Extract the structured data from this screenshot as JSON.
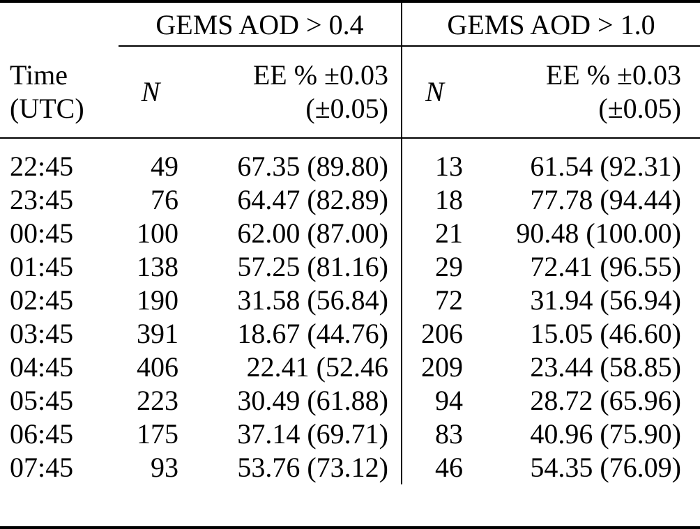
{
  "colors": {
    "text": "#000000",
    "background": "#ffffff",
    "rules": "#000000"
  },
  "chart_data": {
    "type": "table",
    "column_groups": [
      "GEMS AOD > 0.4",
      "GEMS AOD > 1.0"
    ],
    "columns": [
      "Time (UTC)",
      "N",
      "EE % ±0.03 (±0.05)",
      "N",
      "EE % ±0.03 (±0.05)"
    ],
    "header": {
      "time_line1": "Time",
      "time_line2": "(UTC)",
      "n_label": "N",
      "ee_line1": "EE % ±0.03",
      "ee_line2": "(±0.05)"
    },
    "rows": [
      {
        "time": "22:45",
        "n_aod04": "49",
        "ee_aod04": "67.35 (89.80)",
        "n_aod10": "13",
        "ee_aod10": "61.54 (92.31)"
      },
      {
        "time": "23:45",
        "n_aod04": "76",
        "ee_aod04": "64.47 (82.89)",
        "n_aod10": "18",
        "ee_aod10": "77.78 (94.44)"
      },
      {
        "time": "00:45",
        "n_aod04": "100",
        "ee_aod04": "62.00 (87.00)",
        "n_aod10": "21",
        "ee_aod10": "90.48 (100.00)"
      },
      {
        "time": "01:45",
        "n_aod04": "138",
        "ee_aod04": "57.25 (81.16)",
        "n_aod10": "29",
        "ee_aod10": "72.41 (96.55)"
      },
      {
        "time": "02:45",
        "n_aod04": "190",
        "ee_aod04": "31.58 (56.84)",
        "n_aod10": "72",
        "ee_aod10": "31.94 (56.94)"
      },
      {
        "time": "03:45",
        "n_aod04": "391",
        "ee_aod04": "18.67 (44.76)",
        "n_aod10": "206",
        "ee_aod10": "15.05 (46.60)"
      },
      {
        "time": "04:45",
        "n_aod04": "406",
        "ee_aod04": "22.41 (52.46",
        "n_aod10": "209",
        "ee_aod10": "23.44 (58.85)"
      },
      {
        "time": "05:45",
        "n_aod04": "223",
        "ee_aod04": "30.49 (61.88)",
        "n_aod10": "94",
        "ee_aod10": "28.72 (65.96)"
      },
      {
        "time": "06:45",
        "n_aod04": "175",
        "ee_aod04": "37.14 (69.71)",
        "n_aod10": "83",
        "ee_aod10": "40.96 (75.90)"
      },
      {
        "time": "07:45",
        "n_aod04": "93",
        "ee_aod04": "53.76 (73.12)",
        "n_aod10": "46",
        "ee_aod10": "54.35 (76.09)"
      }
    ]
  }
}
